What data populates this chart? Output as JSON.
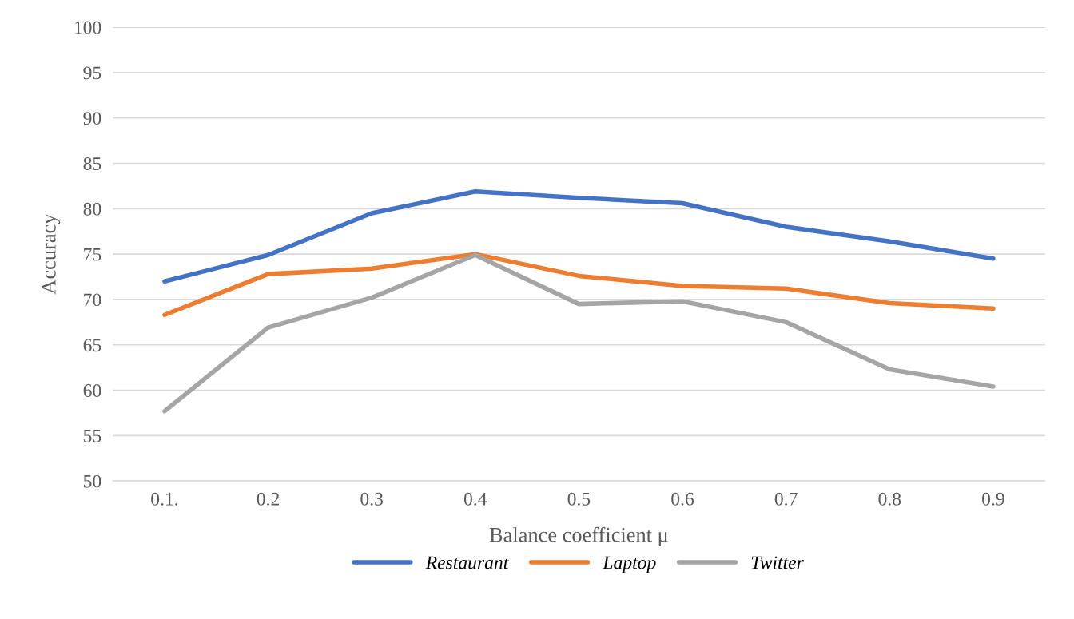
{
  "chart_data": {
    "type": "line",
    "xlabel": "Balance coefficient μ",
    "ylabel": "Accuracy",
    "categories": [
      "0.1.",
      "0.2",
      "0.3",
      "0.4",
      "0.5",
      "0.6",
      "0.7",
      "0.8",
      "0.9"
    ],
    "series": [
      {
        "name": "Restaurant",
        "color": "#4472c4",
        "values": [
          72.0,
          74.9,
          79.5,
          81.9,
          81.2,
          80.6,
          78.0,
          76.4,
          74.5
        ]
      },
      {
        "name": "Laptop",
        "color": "#ed7d31",
        "values": [
          68.3,
          72.8,
          73.4,
          75.0,
          72.6,
          71.5,
          71.2,
          69.6,
          69.0
        ]
      },
      {
        "name": "Twitter",
        "color": "#a5a5a5",
        "values": [
          57.7,
          66.9,
          70.2,
          74.9,
          69.5,
          69.8,
          67.5,
          62.3,
          60.4
        ]
      }
    ],
    "ylim": [
      50,
      100
    ],
    "yticks": [
      50,
      55,
      60,
      65,
      70,
      75,
      80,
      85,
      90,
      95,
      100
    ],
    "grid": "y",
    "legend": "bottom",
    "marker": "none",
    "line_style": "solid"
  }
}
